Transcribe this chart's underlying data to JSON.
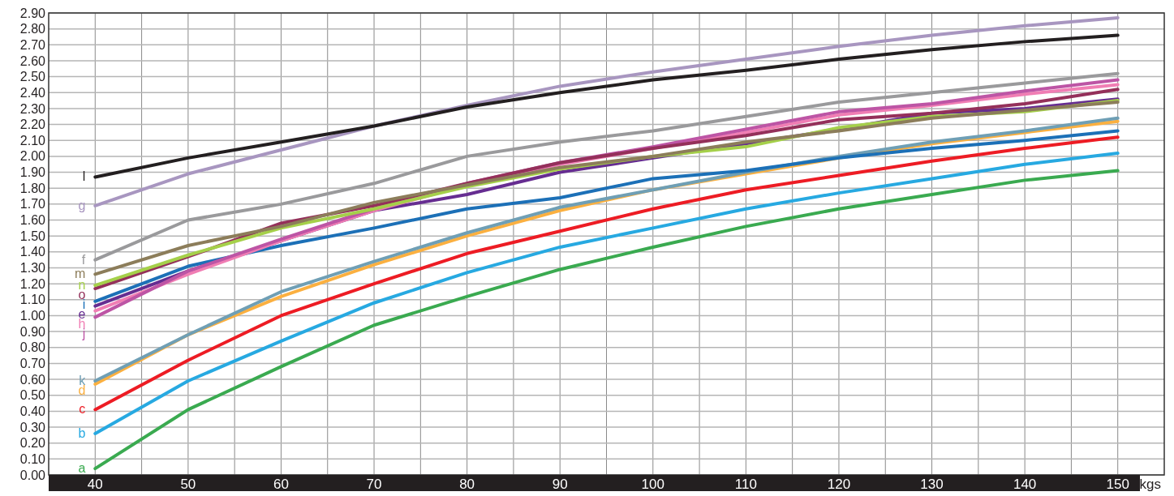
{
  "chart_data": {
    "type": "line",
    "xlabel": "kgs",
    "x": [
      40,
      50,
      60,
      70,
      80,
      90,
      100,
      110,
      120,
      130,
      140,
      150
    ],
    "xlim": [
      35,
      155
    ],
    "xticks": [
      40,
      {
        "value": 45,
        "label": null
      },
      50,
      {
        "value": 55,
        "label": null
      },
      60,
      {
        "value": 65,
        "label": null
      },
      70,
      {
        "value": 75,
        "label": null
      },
      80,
      {
        "value": 85,
        "label": null
      },
      90,
      {
        "value": 95,
        "label": null
      },
      100,
      {
        "value": 105,
        "label": null
      },
      110,
      {
        "value": 115,
        "label": null
      },
      120,
      {
        "value": 125,
        "label": null
      },
      130,
      {
        "value": 135,
        "label": null
      },
      140,
      {
        "value": 145,
        "label": null
      },
      150
    ],
    "ylim": [
      0,
      2.9
    ],
    "yticks": [
      {
        "value": 0,
        "label": "0.00"
      },
      {
        "value": 0.1,
        "label": "0.10"
      },
      {
        "value": 0.2,
        "label": "0.20"
      },
      {
        "value": 0.3,
        "label": "0.30"
      },
      {
        "value": 0.4,
        "label": "0.40"
      },
      {
        "value": 0.5,
        "label": "0.50"
      },
      {
        "value": 0.6,
        "label": "0.60"
      },
      {
        "value": 0.7,
        "label": "0.70"
      },
      {
        "value": 0.8,
        "label": "0.80"
      },
      {
        "value": 0.9,
        "label": "0.90"
      },
      {
        "value": 1,
        "label": "1.00"
      },
      {
        "value": 1.1,
        "label": "1.10"
      },
      {
        "value": 1.2,
        "label": "1.20"
      },
      {
        "value": 1.3,
        "label": "1.30"
      },
      {
        "value": 1.4,
        "label": "1.40"
      },
      {
        "value": 1.5,
        "label": "1.50"
      },
      {
        "value": 1.6,
        "label": "1.60"
      },
      {
        "value": 1.7,
        "label": "1.70"
      },
      {
        "value": 1.8,
        "label": "1.80"
      },
      {
        "value": 1.9,
        "label": "1.90"
      },
      {
        "value": 2,
        "label": "2.00"
      },
      {
        "value": 2.1,
        "label": "2.10"
      },
      {
        "value": 2.2,
        "label": "2.20"
      },
      {
        "value": 2.3,
        "label": "2.30"
      },
      {
        "value": 2.4,
        "label": "2.40"
      },
      {
        "value": 2.5,
        "label": "2.50"
      },
      {
        "value": 2.6,
        "label": "2.60"
      },
      {
        "value": 2.7,
        "label": "2.70"
      },
      {
        "value": 2.8,
        "label": "2.80"
      },
      {
        "value": 2.9,
        "label": "2.90"
      }
    ],
    "grid": true,
    "marker": "none",
    "line_style": "solid",
    "series": [
      {
        "name": "a",
        "color": "#3aaa50",
        "values": [
          0.04,
          0.41,
          0.68,
          0.94,
          1.12,
          1.29,
          1.43,
          1.56,
          1.67,
          1.76,
          1.85,
          1.91
        ]
      },
      {
        "name": "b",
        "color": "#27a9e1",
        "values": [
          0.26,
          0.59,
          0.84,
          1.08,
          1.27,
          1.43,
          1.55,
          1.67,
          1.77,
          1.86,
          1.95,
          2.02
        ]
      },
      {
        "name": "c",
        "color": "#ed1c24",
        "values": [
          0.41,
          0.72,
          1.0,
          1.2,
          1.39,
          1.53,
          1.67,
          1.79,
          1.88,
          1.97,
          2.05,
          2.12
        ]
      },
      {
        "name": "d",
        "color": "#fbb040",
        "values": [
          0.57,
          0.88,
          1.12,
          1.32,
          1.5,
          1.66,
          1.79,
          1.89,
          1.99,
          2.08,
          2.15,
          2.22
        ]
      },
      {
        "name": "k",
        "color": "#6f9fb5",
        "values": [
          0.59,
          0.88,
          1.15,
          1.34,
          1.52,
          1.68,
          1.79,
          1.9,
          2.0,
          2.09,
          2.16,
          2.24
        ]
      },
      {
        "name": "i",
        "color": "#1c70b7",
        "values": [
          1.09,
          1.31,
          1.44,
          1.55,
          1.67,
          1.74,
          1.86,
          1.91,
          1.99,
          2.05,
          2.1,
          2.16
        ]
      },
      {
        "name": "e",
        "color": "#662d91",
        "values": [
          1.06,
          1.28,
          1.47,
          1.66,
          1.76,
          1.9,
          1.99,
          2.08,
          2.17,
          2.27,
          2.3,
          2.36
        ]
      },
      {
        "name": "h",
        "color": "#f07eb4",
        "values": [
          1.03,
          1.26,
          1.47,
          1.66,
          1.82,
          1.95,
          2.05,
          2.15,
          2.26,
          2.32,
          2.39,
          2.45
        ]
      },
      {
        "name": "j",
        "color": "#bd55a5",
        "values": [
          0.99,
          1.28,
          1.48,
          1.67,
          1.83,
          1.96,
          2.06,
          2.17,
          2.28,
          2.33,
          2.41,
          2.48
        ]
      },
      {
        "name": "o",
        "color": "#94305a",
        "values": [
          1.17,
          1.37,
          1.58,
          1.69,
          1.83,
          1.96,
          2.05,
          2.13,
          2.23,
          2.27,
          2.33,
          2.42
        ]
      },
      {
        "name": "n",
        "color": "#a5d04a",
        "values": [
          1.19,
          1.38,
          1.55,
          1.67,
          1.81,
          1.92,
          2.0,
          2.06,
          2.18,
          2.25,
          2.28,
          2.35
        ]
      },
      {
        "name": "m",
        "color": "#8c7d5a",
        "values": [
          1.26,
          1.44,
          1.56,
          1.71,
          1.82,
          1.93,
          2.0,
          2.09,
          2.16,
          2.24,
          2.29,
          2.34
        ]
      },
      {
        "name": "f",
        "color": "#9a9a9c",
        "values": [
          1.35,
          1.6,
          1.7,
          1.83,
          2.0,
          2.09,
          2.16,
          2.25,
          2.34,
          2.4,
          2.46,
          2.52
        ]
      },
      {
        "name": "g",
        "color": "#a896c0",
        "values": [
          1.69,
          1.89,
          2.04,
          2.19,
          2.32,
          2.44,
          2.53,
          2.61,
          2.69,
          2.76,
          2.82,
          2.87
        ]
      },
      {
        "name": "l",
        "color": "#231f20",
        "values": [
          1.87,
          1.99,
          2.09,
          2.19,
          2.31,
          2.4,
          2.48,
          2.54,
          2.61,
          2.67,
          2.72,
          2.76
        ]
      }
    ]
  }
}
